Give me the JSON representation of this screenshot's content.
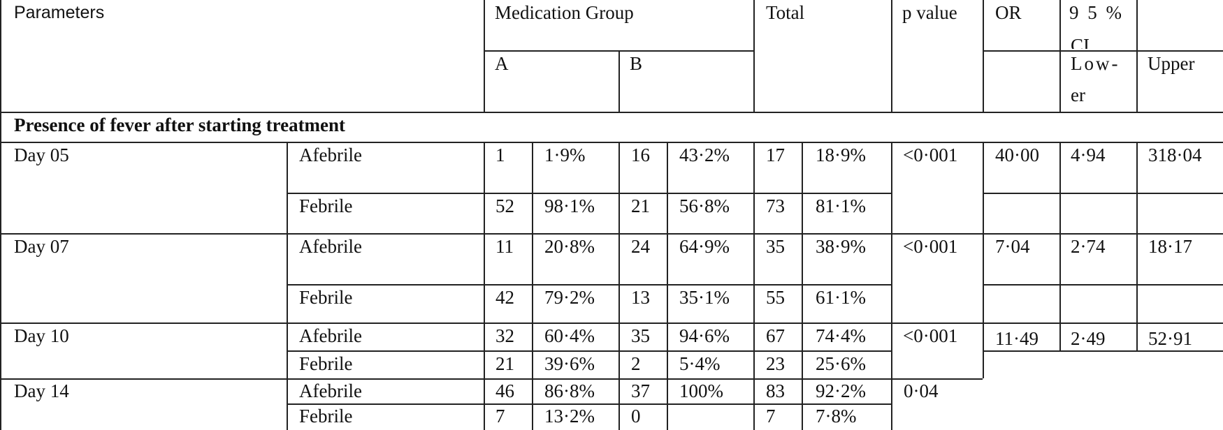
{
  "header": {
    "parameters": "Parameters",
    "medication_group": "Medication Group",
    "total": "Total",
    "p_value": "p value",
    "or": "OR",
    "ci_line1": "9 5 %",
    "ci_line2": "CI",
    "group_a": "A",
    "group_b": "B",
    "lower_line1": "Low-",
    "lower_line2": "er",
    "upper": "Upper"
  },
  "section_title": "Presence of fever after starting treatment",
  "days": [
    {
      "day": "Day 05",
      "p": "<0·001",
      "or": "40·00",
      "lower": "4·94",
      "upper": "318·04",
      "rows": [
        {
          "status": "Afebrile",
          "a_n": "1",
          "a_pct": "1·9%",
          "b_n": "16",
          "b_pct": "43·2%",
          "t_n": "17",
          "t_pct": "18·9%"
        },
        {
          "status": "Febrile",
          "a_n": "52",
          "a_pct": "98·1%",
          "b_n": "21",
          "b_pct": "56·8%",
          "t_n": "73",
          "t_pct": "81·1%"
        }
      ]
    },
    {
      "day": "Day 07",
      "p": "<0·001",
      "or": "7·04",
      "lower": "2·74",
      "upper": "18·17",
      "rows": [
        {
          "status": "Afebrile",
          "a_n": "11",
          "a_pct": "20·8%",
          "b_n": "24",
          "b_pct": "64·9%",
          "t_n": "35",
          "t_pct": "38·9%"
        },
        {
          "status": "Febrile",
          "a_n": "42",
          "a_pct": "79·2%",
          "b_n": "13",
          "b_pct": "35·1%",
          "t_n": "55",
          "t_pct": "61·1%"
        }
      ]
    },
    {
      "day": "Day 10",
      "p": "<0·001",
      "or": "11·49",
      "lower": "2·49",
      "upper": "52·91",
      "rows": [
        {
          "status": "Afebrile",
          "a_n": "32",
          "a_pct": "60·4%",
          "b_n": "35",
          "b_pct": "94·6%",
          "t_n": "67",
          "t_pct": "74·4%"
        },
        {
          "status": "Febrile",
          "a_n": "21",
          "a_pct": "39·6%",
          "b_n": "2",
          "b_pct": "5·4%",
          "t_n": "23",
          "t_pct": "25·6%"
        }
      ]
    },
    {
      "day": "Day 14",
      "p": "0·04",
      "rows": [
        {
          "status": "Afebrile",
          "a_n": "46",
          "a_pct": "86·8%",
          "b_n": "37",
          "b_pct": "100%",
          "t_n": "83",
          "t_pct": "92·2%"
        },
        {
          "status": "Febrile",
          "a_n": "7",
          "a_pct": "13·2%",
          "b_n": "0",
          "b_pct": "",
          "t_n": "7",
          "t_pct": "7·8%"
        }
      ]
    }
  ]
}
